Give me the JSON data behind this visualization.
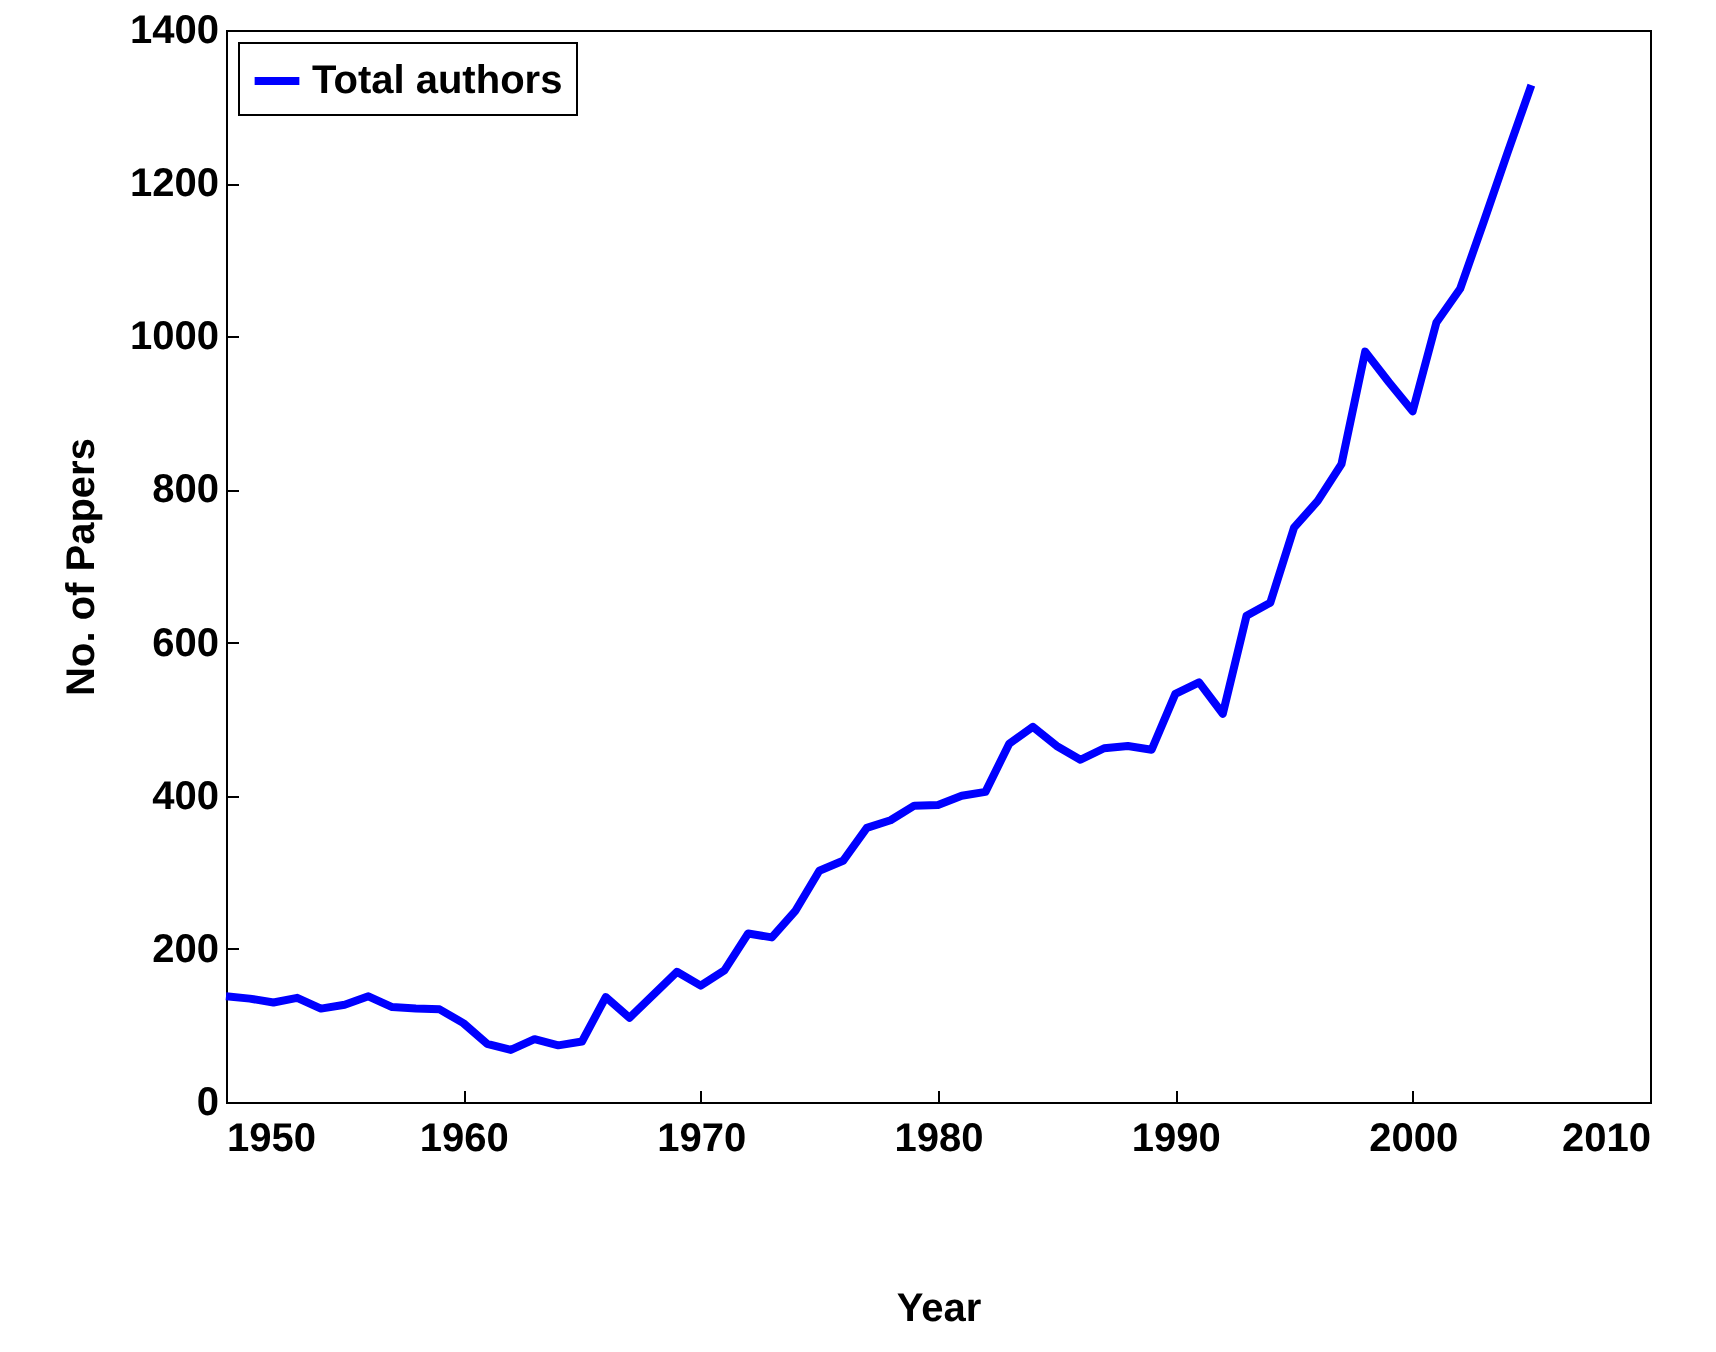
{
  "chart_data": {
    "type": "line",
    "xlabel": "Year",
    "ylabel": "No. of Papers",
    "x": [
      1950,
      1951,
      1952,
      1953,
      1954,
      1955,
      1956,
      1957,
      1958,
      1959,
      1960,
      1961,
      1962,
      1963,
      1964,
      1965,
      1966,
      1967,
      1968,
      1969,
      1970,
      1971,
      1972,
      1973,
      1974,
      1975,
      1976,
      1977,
      1978,
      1979,
      1980,
      1981,
      1982,
      1983,
      1984,
      1985,
      1986,
      1987,
      1988,
      1989,
      1990,
      1991,
      1992,
      1993,
      1994,
      1995,
      1996,
      1997,
      1998,
      1999,
      2000,
      2001,
      2002,
      2003,
      2004,
      2005
    ],
    "series": [
      {
        "name": "Total authors",
        "color": "#0000ff",
        "values": [
          138,
          135,
          130,
          136,
          122,
          127,
          138,
          124,
          122,
          121,
          103,
          76,
          68,
          82,
          74,
          79,
          137,
          110,
          140,
          170,
          152,
          172,
          220,
          215,
          250,
          302,
          315,
          358,
          368,
          387,
          388,
          400,
          405,
          468,
          490,
          465,
          447,
          462,
          465,
          460,
          533,
          548,
          507,
          635,
          652,
          750,
          785,
          833,
          980,
          940,
          902,
          1018,
          1062,
          1150,
          1240,
          1328
        ]
      }
    ],
    "xlim": [
      1950,
      2010
    ],
    "xticks": [
      1950,
      1960,
      1970,
      1980,
      1990,
      2000,
      2010
    ],
    "ylim": [
      0,
      1400
    ],
    "yticks": [
      0,
      200,
      400,
      600,
      800,
      1000,
      1200,
      1400
    ],
    "legend": "top left",
    "grid": false,
    "marker": "none",
    "line_style": "solid"
  }
}
